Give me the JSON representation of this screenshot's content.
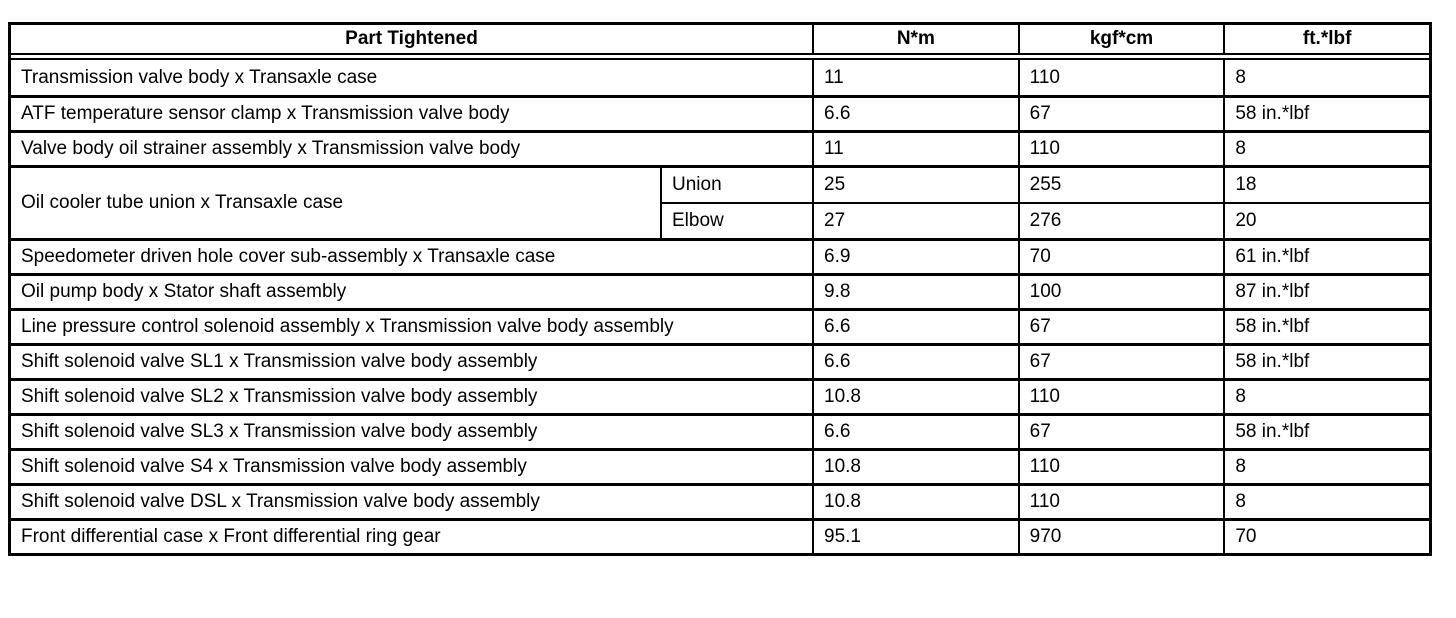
{
  "table": {
    "header": {
      "part": "Part Tightened",
      "nm": "N*m",
      "kgfcm": "kgf*cm",
      "ftlbf": "ft.*lbf"
    },
    "rows": [
      {
        "part": "Transmission valve body x Transaxle case",
        "nm": "11",
        "kgfcm": "110",
        "ftlbf": "8"
      },
      {
        "part": "ATF temperature sensor clamp x Transmission valve body",
        "nm": "6.6",
        "kgfcm": "67",
        "ftlbf": "58 in.*lbf"
      },
      {
        "part": "Valve body oil strainer assembly x Transmission valve body",
        "nm": "11",
        "kgfcm": "110",
        "ftlbf": "8"
      },
      {
        "part": "Oil cooler tube union x Transaxle case",
        "subrows": [
          {
            "sub": "Union",
            "nm": "25",
            "kgfcm": "255",
            "ftlbf": "18"
          },
          {
            "sub": "Elbow",
            "nm": "27",
            "kgfcm": "276",
            "ftlbf": "20"
          }
        ]
      },
      {
        "part": "Speedometer driven hole cover sub-assembly x Transaxle case",
        "nm": "6.9",
        "kgfcm": "70",
        "ftlbf": "61 in.*lbf"
      },
      {
        "part": "Oil pump body x Stator shaft assembly",
        "nm": "9.8",
        "kgfcm": "100",
        "ftlbf": "87 in.*lbf"
      },
      {
        "part": "Line pressure control solenoid assembly x Transmission valve body assembly",
        "nm": "6.6",
        "kgfcm": "67",
        "ftlbf": "58 in.*lbf"
      },
      {
        "part": "Shift solenoid valve SL1 x Transmission valve body assembly",
        "nm": "6.6",
        "kgfcm": "67",
        "ftlbf": "58 in.*lbf"
      },
      {
        "part": "Shift solenoid valve SL2 x Transmission valve body assembly",
        "nm": "10.8",
        "kgfcm": "110",
        "ftlbf": "8"
      },
      {
        "part": "Shift solenoid valve SL3 x Transmission valve body assembly",
        "nm": "6.6",
        "kgfcm": "67",
        "ftlbf": "58 in.*lbf"
      },
      {
        "part": "Shift solenoid valve S4 x Transmission valve body assembly",
        "nm": "10.8",
        "kgfcm": "110",
        "ftlbf": "8"
      },
      {
        "part": "Shift solenoid valve DSL x Transmission valve body assembly",
        "nm": "10.8",
        "kgfcm": "110",
        "ftlbf": "8"
      },
      {
        "part": "Front differential case x Front differential ring gear",
        "nm": "95.1",
        "kgfcm": "970",
        "ftlbf": "70"
      }
    ]
  }
}
